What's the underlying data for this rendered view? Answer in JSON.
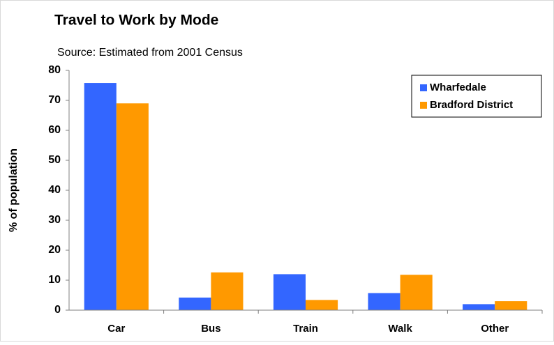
{
  "chart_data": {
    "type": "bar",
    "title": "Travel to Work by Mode",
    "subtitle": "Source: Estimated from 2001 Census",
    "y_label": "% of population",
    "categories": [
      "Car",
      "Bus",
      "Train",
      "Walk",
      "Other"
    ],
    "series": [
      {
        "name": "Wharfedale",
        "color": "#3366ff",
        "values": [
          75.8,
          4.2,
          12,
          5.7,
          2
        ]
      },
      {
        "name": "Bradford District",
        "color": "#ff9900",
        "values": [
          69,
          12.6,
          3.4,
          11.8,
          3
        ]
      }
    ],
    "ylim": [
      0,
      80
    ],
    "yticks": [
      0,
      10,
      20,
      30,
      40,
      50,
      60,
      70,
      80
    ],
    "grid": false,
    "legend": "top-right"
  }
}
